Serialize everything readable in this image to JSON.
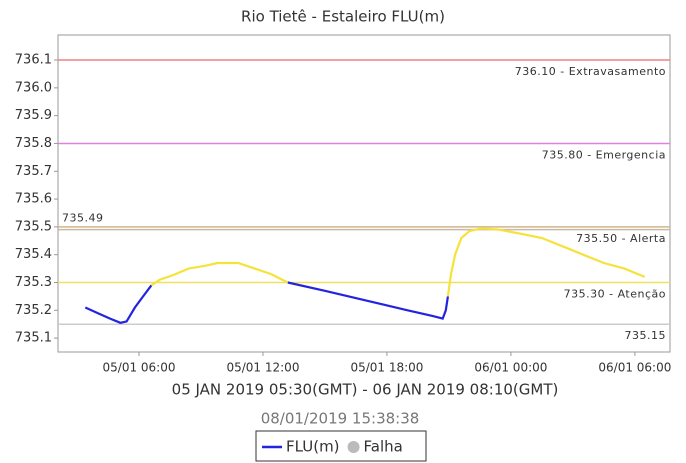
{
  "chart_data": {
    "type": "line",
    "title": "Rio Tietê - Estaleiro FLU(m)",
    "x_label": "05 JAN 2019 05:30(GMT) - 06 JAN 2019 08:10(GMT)",
    "subtitle": "08/01/2019 15:38:38",
    "xlim": [
      2.08,
      31.7
    ],
    "xticks": [
      {
        "value": 6,
        "label": "05/01 06:00"
      },
      {
        "value": 12,
        "label": "05/01 12:00"
      },
      {
        "value": 18,
        "label": "05/01 18:00"
      },
      {
        "value": 24,
        "label": "06/01 00:00"
      },
      {
        "value": 30,
        "label": "06/01 06:00"
      }
    ],
    "ylim": [
      735.05,
      736.19
    ],
    "yticks": [
      735.1,
      735.2,
      735.3,
      735.4,
      735.5,
      735.6,
      735.7,
      735.8,
      735.9,
      {
        "value": 736,
        "label": "736.0"
      },
      736.1
    ],
    "series": [
      {
        "color": "#2323e0",
        "x": [
          3.4,
          4.0,
          4.6,
          5.1,
          5.4,
          5.8,
          6.2,
          6.6
        ],
        "values": [
          735.21,
          735.19,
          735.17,
          735.155,
          735.16,
          735.21,
          735.25,
          735.29
        ]
      },
      {
        "color": "#f5e23a",
        "x": [
          6.6,
          7.0,
          7.6,
          8.4,
          9.2,
          9.8,
          10.8,
          11.4,
          12.4,
          13.2
        ],
        "values": [
          735.29,
          735.31,
          735.325,
          735.35,
          735.36,
          735.37,
          735.37,
          735.355,
          735.33,
          735.3
        ]
      },
      {
        "color": "#2323e0",
        "x": [
          13.2,
          15,
          17,
          19,
          20.2,
          20.7,
          20.85,
          20.95
        ],
        "values": [
          735.3,
          735.27,
          735.235,
          735.2,
          735.18,
          735.17,
          735.2,
          735.25
        ]
      },
      {
        "color": "#f5e23a",
        "x": [
          20.95,
          21.1,
          21.3,
          21.6,
          22.0,
          22.6,
          23.4,
          24.5,
          25.5,
          26.5,
          27.5,
          28.5,
          29.5,
          30.48
        ],
        "values": [
          735.25,
          735.33,
          735.4,
          735.46,
          735.485,
          735.495,
          735.49,
          735.475,
          735.46,
          735.43,
          735.4,
          735.37,
          735.35,
          735.32
        ]
      }
    ],
    "thresholds": [
      {
        "value": 736.1,
        "label": "736.10 - Extravasamento",
        "color": "#f08080",
        "side": "right"
      },
      {
        "value": 735.8,
        "label": "735.80 - Emergencia",
        "color": "#e080e0",
        "side": "right"
      },
      {
        "value": 735.5,
        "label": "735.50 - Alerta",
        "color": "#d2b48c",
        "side": "right"
      },
      {
        "value": 735.49,
        "label": "735.49",
        "color": "#c8bca8",
        "side": "left"
      },
      {
        "value": 735.3,
        "label": "735.30 - Atenção",
        "color": "#f0e060",
        "side": "right"
      },
      {
        "value": 735.15,
        "label": "735.15",
        "color": "#cccccc",
        "side": "right"
      }
    ],
    "legend": [
      {
        "name": "FLU(m)",
        "color": "#2323e0",
        "marker": "line"
      },
      {
        "name": "Falha",
        "color": "#bbbbbb",
        "marker": "dot"
      }
    ]
  }
}
